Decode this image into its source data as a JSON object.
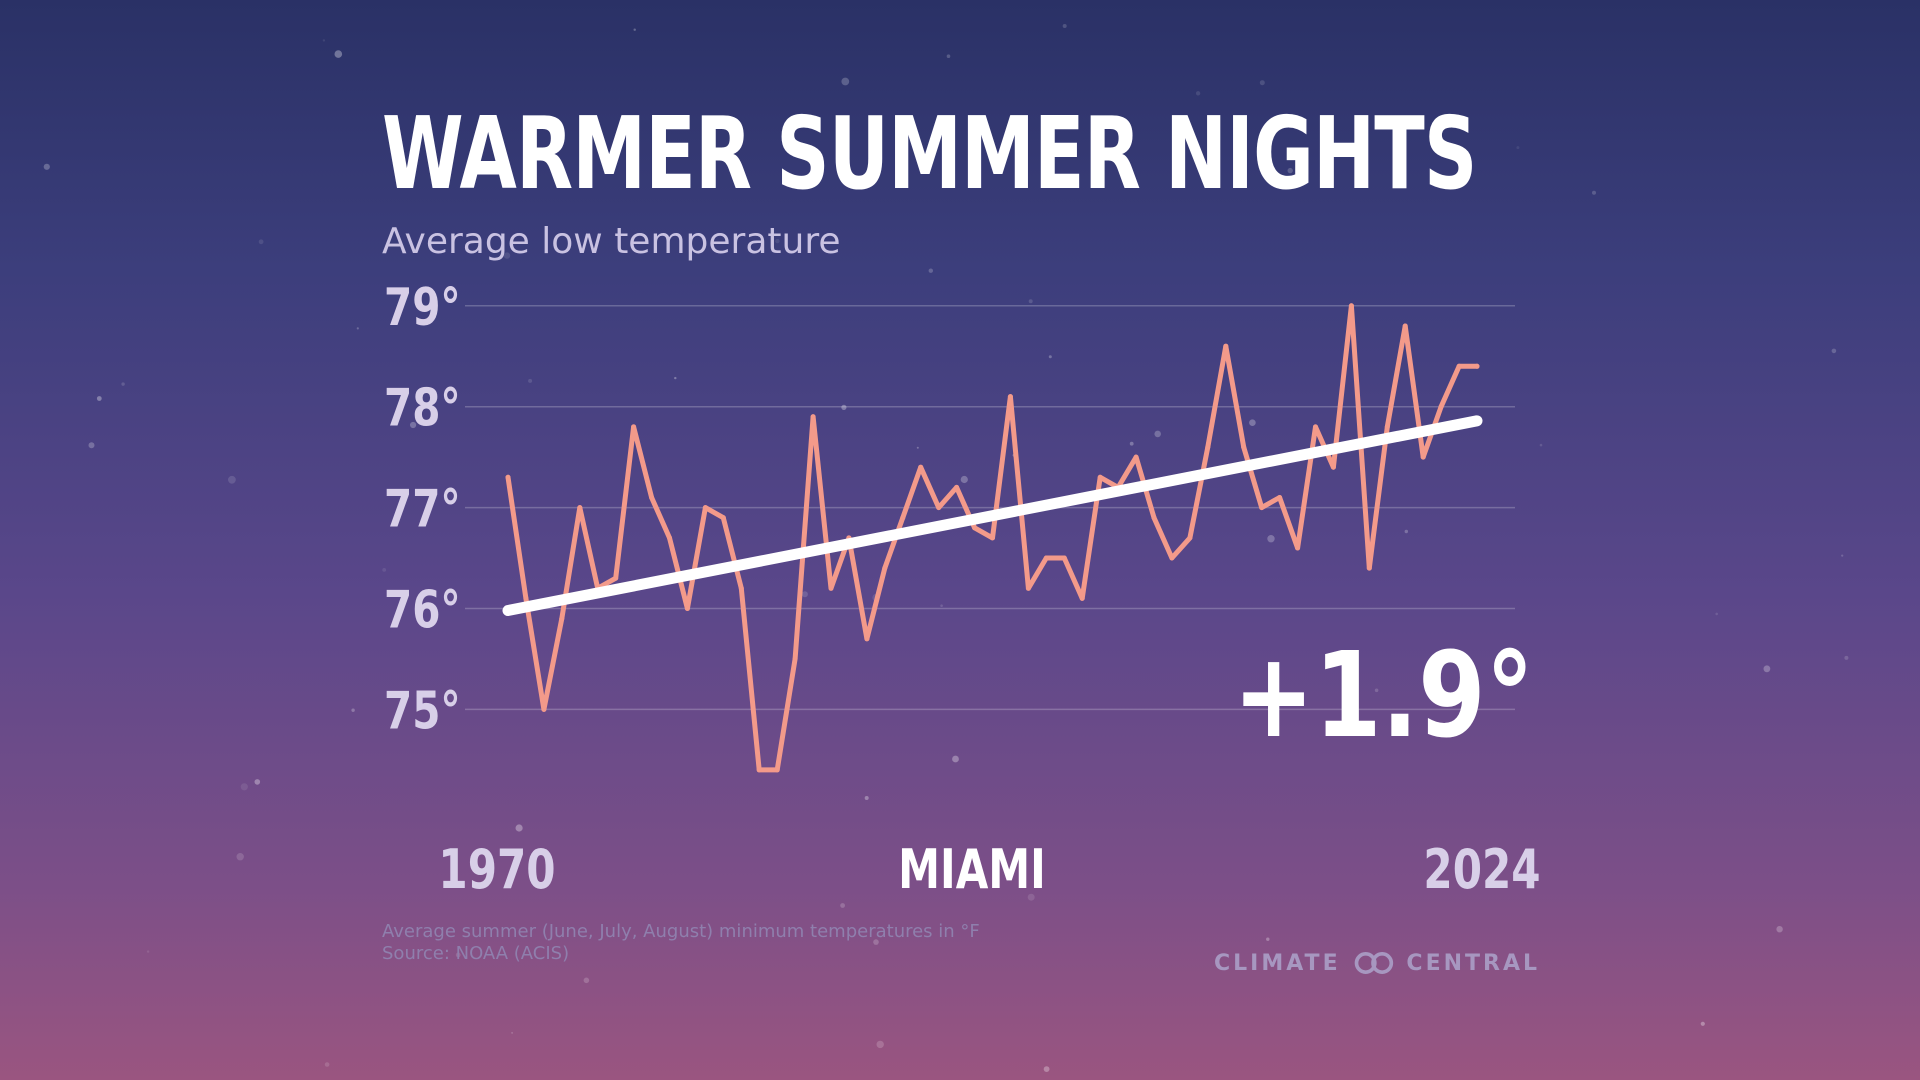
{
  "title": "WARMER SUMMER NIGHTS",
  "subtitle": "Average low temperature",
  "footnote": "Average summer (June, July, August) minimum temperatures in °F",
  "source": "Source: NOAA (ACIS)",
  "logo": {
    "left": "CLIMATE",
    "right": "CENTRAL",
    "icon": "linked-rings-icon"
  },
  "chart_data": {
    "type": "line",
    "title": "WARMER SUMMER NIGHTS",
    "subtitle": "Average low temperature",
    "location": "MIAMI",
    "change_label": "+1.9°",
    "x_start_label": "1970",
    "x_end_label": "2024",
    "xlim": [
      1970,
      2024
    ],
    "ylim": [
      74.4,
      79.1
    ],
    "yticks": [
      75,
      76,
      77,
      78,
      79
    ],
    "ytick_labels": [
      "75°",
      "76°",
      "77°",
      "78°",
      "79°"
    ],
    "grid": true,
    "x": [
      1970,
      1971,
      1972,
      1973,
      1974,
      1975,
      1976,
      1977,
      1978,
      1979,
      1980,
      1981,
      1982,
      1983,
      1984,
      1985,
      1986,
      1987,
      1988,
      1989,
      1990,
      1991,
      1992,
      1993,
      1994,
      1995,
      1996,
      1997,
      1998,
      1999,
      2000,
      2001,
      2002,
      2003,
      2004,
      2005,
      2006,
      2007,
      2008,
      2009,
      2010,
      2011,
      2012,
      2013,
      2014,
      2015,
      2016,
      2017,
      2018,
      2019,
      2020,
      2021,
      2022,
      2023,
      2024
    ],
    "series": [
      {
        "values": [
          77.3,
          76.1,
          75.0,
          75.9,
          77.0,
          76.2,
          76.3,
          77.8,
          77.1,
          76.7,
          76.0,
          77.0,
          76.9,
          76.2,
          74.4,
          74.4,
          75.5,
          77.9,
          76.2,
          76.7,
          75.7,
          76.4,
          76.9,
          77.4,
          77.0,
          77.2,
          76.8,
          76.7,
          78.1,
          76.2,
          76.5,
          76.5,
          76.1,
          77.3,
          77.2,
          77.5,
          76.9,
          76.5,
          76.7,
          77.6,
          78.6,
          77.6,
          77.0,
          77.1,
          76.6,
          77.8,
          77.4,
          79.0,
          76.4,
          77.8,
          78.8,
          77.5,
          78.0,
          78.4,
          78.4
        ],
        "color": "#f39a8a"
      }
    ],
    "trend": {
      "start": 75.98,
      "end": 77.86,
      "color": "#ffffff"
    }
  }
}
